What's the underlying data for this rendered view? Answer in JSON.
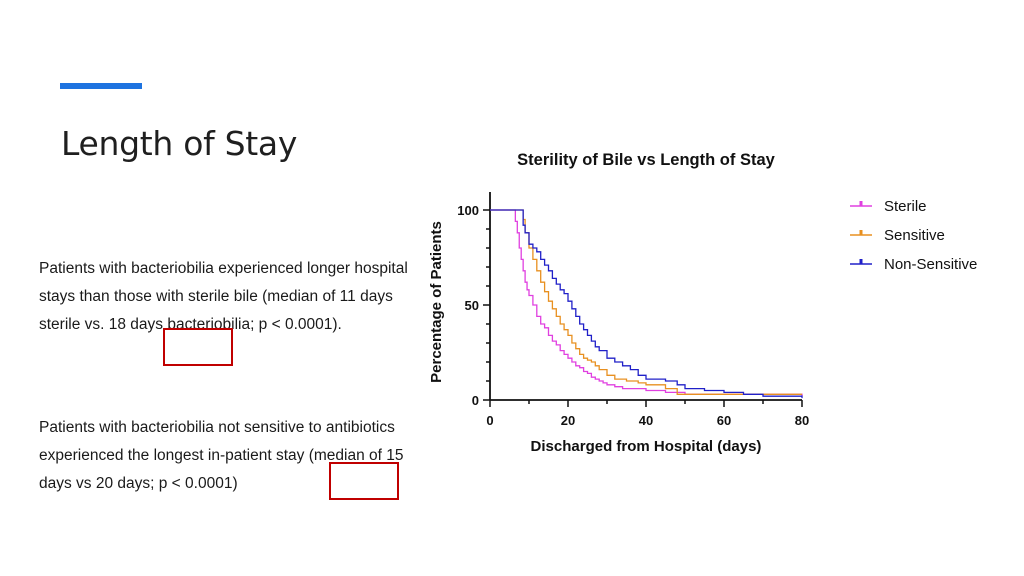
{
  "colors": {
    "accent": "#1e73e0",
    "highlight": "#c00000",
    "sterile": "#e040e0",
    "sensitive": "#e89020",
    "non_sensitive": "#2020c8"
  },
  "slide": {
    "title": "Length of Stay",
    "para1": "Patients with bacteriobilia experienced longer hospital stays than those with sterile bile (median of 11 days sterile vs. 18 days bacteriobilia; p < 0.0001).",
    "para2": "Patients with bacteriobilia not sensitive to antibiotics experienced the longest in-patient stay (median of 15 days vs 20 days; p < 0.0001)"
  },
  "chart_data": {
    "type": "line",
    "title": "Sterility of Bile vs Length of Stay",
    "xlabel": "Discharged from Hospital (days)",
    "ylabel": "Percentage of Patients",
    "xlim": [
      0,
      80
    ],
    "ylim": [
      0,
      100
    ],
    "xticks": [
      "0",
      "20",
      "40",
      "60",
      "80"
    ],
    "yticks": [
      "0",
      "50",
      "100"
    ],
    "legend_position": "top-right",
    "series": [
      {
        "name": "Sterile",
        "color": "#e040e0",
        "x": [
          0,
          6,
          6.5,
          7,
          7.5,
          8,
          8.5,
          9,
          9.5,
          10,
          11,
          12,
          13,
          14,
          15,
          16,
          17,
          18,
          19,
          20,
          21,
          22,
          23,
          24,
          25,
          26,
          27,
          28,
          29,
          30,
          32,
          34,
          36,
          40,
          45,
          50,
          80
        ],
        "y": [
          100,
          100,
          94,
          88,
          80,
          74,
          68,
          62,
          58,
          55,
          50,
          44,
          40,
          38,
          34,
          31,
          29,
          26,
          24,
          22,
          20,
          18,
          17,
          15,
          14,
          12,
          11,
          10,
          9,
          8,
          7,
          6,
          6,
          5,
          4,
          3,
          2
        ]
      },
      {
        "name": "Sensitive",
        "color": "#e89020",
        "x": [
          0,
          7,
          8,
          8.5,
          9,
          10,
          11,
          12,
          13,
          14,
          15,
          16,
          17,
          18,
          19,
          20,
          21,
          22,
          23,
          24,
          25,
          26,
          27,
          28,
          30,
          32,
          35,
          38,
          40,
          45,
          48,
          62,
          80
        ],
        "y": [
          100,
          100,
          100,
          95,
          88,
          80,
          74,
          68,
          62,
          57,
          52,
          48,
          44,
          40,
          37,
          34,
          30,
          27,
          24,
          22,
          21,
          20,
          18,
          16,
          13,
          11,
          10,
          9,
          8,
          6,
          3,
          3,
          3
        ]
      },
      {
        "name": "Non-Sensitive",
        "color": "#2020c8",
        "x": [
          0,
          8,
          8.5,
          9,
          10,
          11,
          12,
          13,
          14,
          15,
          16,
          17,
          18,
          19,
          20,
          21,
          22,
          23,
          24,
          25,
          26,
          27,
          28,
          30,
          32,
          34,
          36,
          38,
          40,
          45,
          48,
          50,
          55,
          60,
          65,
          70,
          80
        ],
        "y": [
          100,
          100,
          92,
          88,
          82,
          80,
          78,
          74,
          71,
          68,
          64,
          61,
          58,
          56,
          52,
          48,
          44,
          40,
          37,
          34,
          31,
          28,
          26,
          22,
          20,
          18,
          16,
          13,
          11,
          10,
          8,
          6,
          5,
          4,
          3,
          2,
          1
        ]
      }
    ]
  }
}
